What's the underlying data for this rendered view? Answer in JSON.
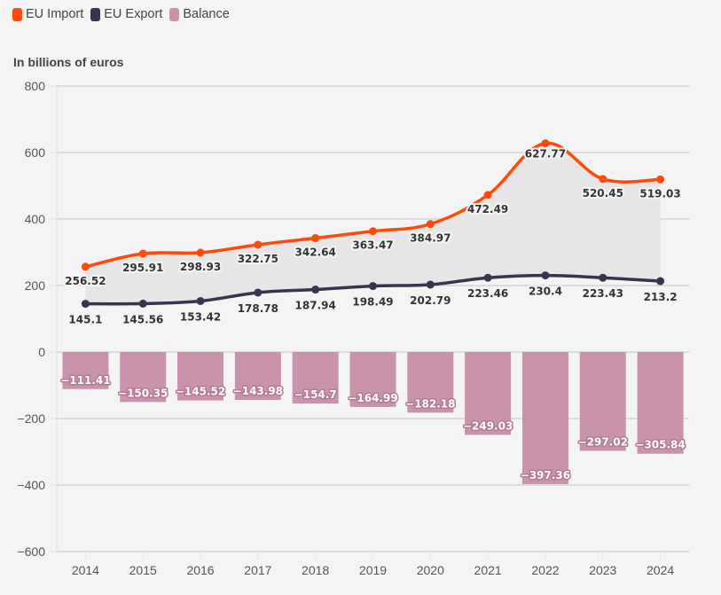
{
  "chart_data": {
    "type": "line+bar",
    "title": "",
    "subtitle": "In billions of euros",
    "xlabel": "",
    "ylabel": "In billions of euros",
    "ylim": [
      -600,
      800
    ],
    "yticks": [
      800,
      600,
      400,
      200,
      0,
      -200,
      -400,
      -600
    ],
    "grid": true,
    "legend_position": "top-left",
    "categories": [
      "2014",
      "2015",
      "2016",
      "2017",
      "2018",
      "2019",
      "2020",
      "2021",
      "2022",
      "2023",
      "2024"
    ],
    "series": [
      {
        "name": "EU Import",
        "type": "line",
        "color": "#ff4a0a",
        "values": [
          256.52,
          295.91,
          298.93,
          322.75,
          342.64,
          363.47,
          384.97,
          472.49,
          627.77,
          520.45,
          519.03
        ]
      },
      {
        "name": "EU Export",
        "type": "line",
        "color": "#3d3150",
        "values": [
          145.1,
          145.56,
          153.42,
          178.78,
          187.94,
          198.49,
          202.79,
          223.46,
          230.4,
          223.43,
          213.2
        ]
      },
      {
        "name": "Balance",
        "type": "bar",
        "color": "#c993ab",
        "values": [
          -111.41,
          -150.35,
          -145.52,
          -143.98,
          -154.7,
          -164.99,
          -182.18,
          -249.03,
          -397.36,
          -297.02,
          -305.84
        ]
      }
    ]
  },
  "legend": [
    {
      "label": "EU Import",
      "color": "#ff4a0a"
    },
    {
      "label": "EU Export",
      "color": "#3d3150"
    },
    {
      "label": "Balance",
      "color": "#c993ab"
    }
  ]
}
